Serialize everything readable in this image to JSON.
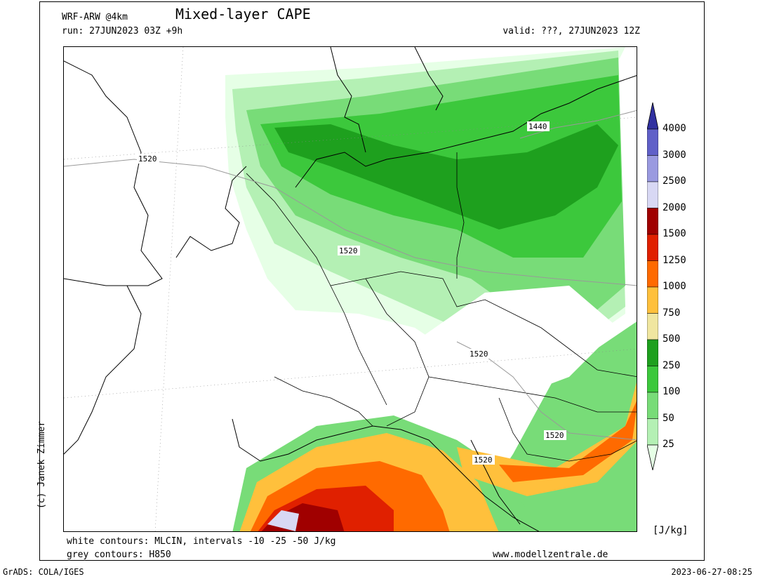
{
  "header": {
    "model": "WRF-ARW @4km",
    "title": "Mixed-layer CAPE",
    "run": "run: 27JUN2023 03Z +9h",
    "valid": "valid: ???, 27JUN2023 12Z"
  },
  "footer": {
    "white_contours": "white contours: MLCIN, intervals -10 -25 -50 J/kg",
    "grey_contours": "grey contours: H850",
    "website": "www.modellzentrale.de",
    "grads": "GrADS: COLA/IGES",
    "timestamp": "2023-06-27-08:25",
    "credit": "(c) Janek Zimmer"
  },
  "legend": {
    "unit": "[J/kg]",
    "levels": [
      "25",
      "50",
      "100",
      "250",
      "500",
      "750",
      "1000",
      "1250",
      "1500",
      "2000",
      "2500",
      "3000",
      "4000"
    ],
    "colors": [
      "#e6ffe6",
      "#b4f0b4",
      "#78dc78",
      "#3cc83c",
      "#1ea01e",
      "#f0e6a0",
      "#ffc03c",
      "#ff6a00",
      "#e02000",
      "#a00000",
      "#d8d8f4",
      "#9a9ae0",
      "#6060c8",
      "#3030a0"
    ]
  },
  "map": {
    "h850_labels": [
      "1440",
      "1520",
      "1520",
      "1520",
      "1520",
      "1520"
    ]
  }
}
